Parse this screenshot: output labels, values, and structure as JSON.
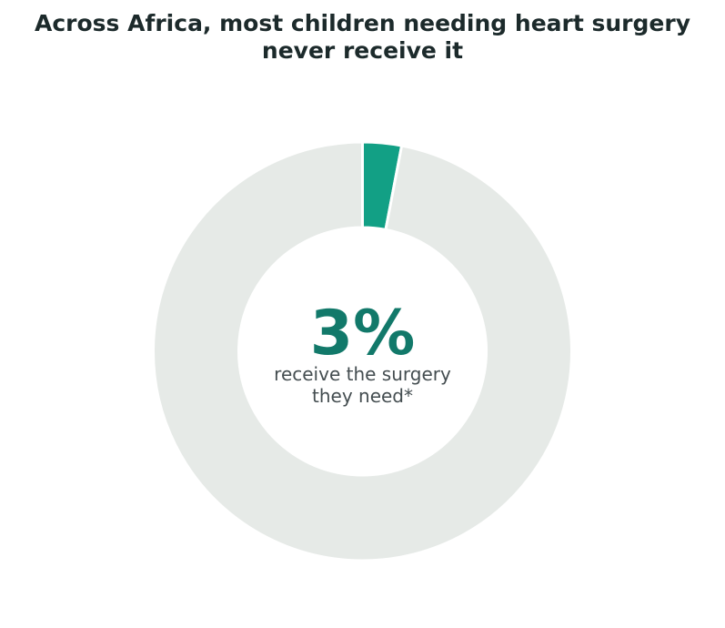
{
  "chart_data": {
    "type": "pie",
    "variant": "donut",
    "title_lines": [
      "Across Africa, most children needing heart surgery",
      "never receive it"
    ],
    "slices": [
      {
        "label": "receive the surgery they need",
        "value": 3,
        "color": "#12a085"
      },
      {
        "label": "",
        "value": 97,
        "color": "#e6eae7"
      }
    ],
    "center_value": "3%",
    "center_caption_lines": [
      "receive the surgery",
      "they need*"
    ],
    "start_angle": "top",
    "direction": "clockwise",
    "colors": {
      "highlight": "#12a085",
      "remainder": "#e6eae7",
      "center_value": "#12796a",
      "caption": "#444d50",
      "title": "#1c2a2b"
    }
  }
}
